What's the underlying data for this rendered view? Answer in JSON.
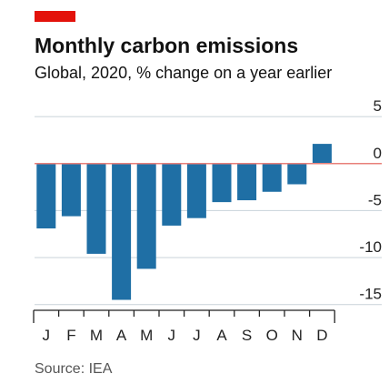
{
  "chart_data": {
    "type": "bar",
    "title": "Monthly carbon emissions",
    "subtitle": "Global, 2020, % change on a year earlier",
    "source": "Source: IEA",
    "categories": [
      "J",
      "F",
      "M",
      "A",
      "M",
      "J",
      "J",
      "A",
      "S",
      "O",
      "N",
      "D"
    ],
    "values": [
      -6.9,
      -5.6,
      -9.6,
      -14.5,
      -11.2,
      -6.6,
      -5.8,
      -4.1,
      -3.9,
      -3.0,
      -2.2,
      2.1
    ],
    "color": "#1f6fa5",
    "ylim": [
      -16,
      5.5
    ],
    "yticks": [
      5,
      0,
      -5,
      -10,
      -15
    ],
    "grid": true
  }
}
